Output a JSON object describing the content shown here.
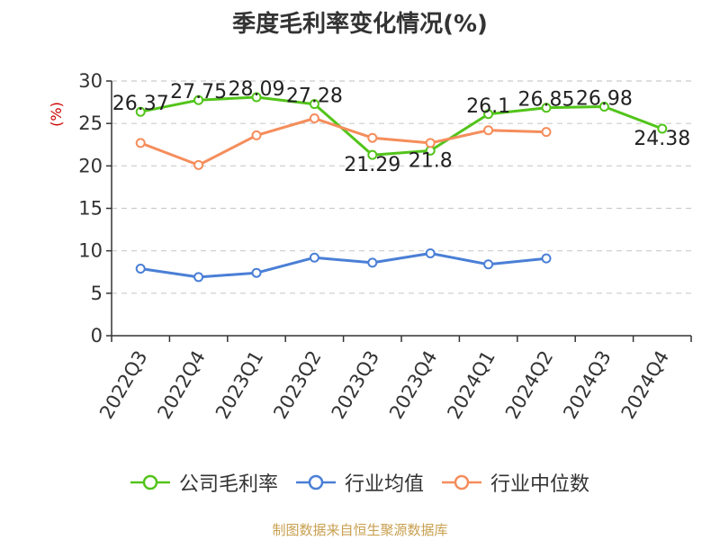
{
  "chart_data": {
    "type": "line",
    "title": "季度毛利率变化情况(%)",
    "ylabel": "(%)",
    "xlabel": "",
    "categories": [
      "2022Q3",
      "2022Q4",
      "2023Q1",
      "2023Q2",
      "2023Q3",
      "2023Q4",
      "2024Q1",
      "2024Q2",
      "2024Q3",
      "2024Q4"
    ],
    "ylim": [
      0,
      30
    ],
    "yticks": [
      0,
      5,
      10,
      15,
      20,
      25,
      30
    ],
    "grid": true,
    "legend_position": "bottom",
    "series": [
      {
        "name": "公司毛利率",
        "color": "#52c41a",
        "values": [
          26.37,
          27.75,
          28.09,
          27.28,
          21.29,
          21.8,
          26.1,
          26.85,
          26.98,
          24.38
        ],
        "labels": [
          "26.37",
          "27.75",
          "28.09",
          "27.28",
          "21.29",
          "21.8",
          "26.1",
          "26.85",
          "26.98",
          "24.38"
        ]
      },
      {
        "name": "行业均值",
        "color": "#4a7fd6",
        "values": [
          7.9,
          6.9,
          7.4,
          9.2,
          8.6,
          9.7,
          8.4,
          9.1,
          null,
          null
        ]
      },
      {
        "name": "行业中位数",
        "color": "#f58d5b",
        "values": [
          22.7,
          20.1,
          23.6,
          25.6,
          23.3,
          22.7,
          24.2,
          24.0,
          null,
          null
        ]
      }
    ]
  },
  "footer": "制图数据来自恒生聚源数据库",
  "colors": {
    "axis": "#333333",
    "grid": "#cccccc",
    "ylabel": "#cc0000"
  }
}
